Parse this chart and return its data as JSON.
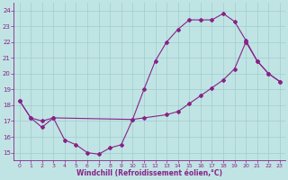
{
  "xlabel": "Windchill (Refroidissement éolien,°C)",
  "bg_color": "#c0e4e4",
  "line_color": "#882288",
  "grid_color": "#a0cccc",
  "xlim": [
    -0.5,
    23.5
  ],
  "ylim": [
    14.5,
    24.5
  ],
  "xticks": [
    0,
    1,
    2,
    3,
    4,
    5,
    6,
    7,
    8,
    9,
    10,
    11,
    12,
    13,
    14,
    15,
    16,
    17,
    18,
    19,
    20,
    21,
    22,
    23
  ],
  "yticks": [
    15,
    16,
    17,
    18,
    19,
    20,
    21,
    22,
    23,
    24
  ],
  "line1_x": [
    0,
    1,
    2,
    3,
    4,
    5,
    6,
    7,
    8,
    9,
    10,
    11,
    12,
    13,
    14,
    15,
    16,
    17,
    18,
    19,
    20,
    21,
    22,
    23
  ],
  "line1_y": [
    18.3,
    17.2,
    16.6,
    17.2,
    15.8,
    15.5,
    15.0,
    14.9,
    15.3,
    15.5,
    17.1,
    19.0,
    20.8,
    22.0,
    22.8,
    23.4,
    23.4,
    23.4,
    23.8,
    23.3,
    22.1,
    20.8,
    20.0,
    19.5
  ],
  "line2_x": [
    0,
    1,
    2,
    3,
    10,
    11,
    13,
    14,
    15,
    16,
    17,
    18,
    19,
    20,
    21,
    22,
    23
  ],
  "line2_y": [
    18.3,
    17.2,
    17.0,
    17.2,
    17.1,
    17.2,
    17.4,
    17.6,
    18.1,
    18.6,
    19.1,
    19.6,
    20.3,
    22.0,
    20.8,
    20.0,
    19.5
  ]
}
